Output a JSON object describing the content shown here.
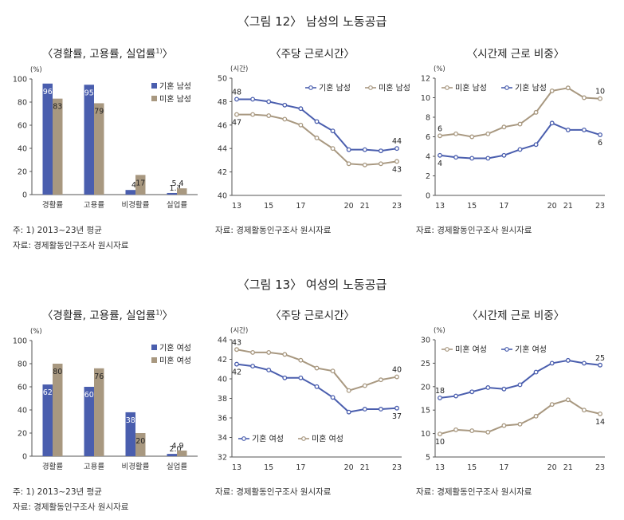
{
  "fig12": {
    "title": "〈그림 12〉 남성의 노동공급",
    "panels": [
      {
        "title": "〈경활률, 고용률, 실업률",
        "sup": "1)",
        "close": "〉"
      },
      {
        "title": "〈주당 근로시간〉"
      },
      {
        "title": "〈시간제 근로 비중〉"
      }
    ],
    "notes": {
      "n1": "주: 1) 2013~23년 평균",
      "source_a": "자료: 경제활동인구조사 원시자료",
      "source_b": "자료: 경제활동인구조사 원시자료",
      "source_c": "자료: 경제활동인구조사 원시자료"
    }
  },
  "fig13": {
    "title": "〈그림 13〉 여성의 노동공급",
    "panels": [
      {
        "title": "〈경활률, 고용률, 실업률",
        "sup": "1)",
        "close": "〉"
      },
      {
        "title": "〈주당 근로시간〉"
      },
      {
        "title": "〈시간제 근로 비중〉"
      }
    ],
    "notes": {
      "n1": "주: 1) 2013~23년 평균",
      "source_a": "자료: 경제활동인구조사 원시자료",
      "source_b": "자료: 경제활동인구조사 원시자료",
      "source_c": "자료: 경제활동인구조사 원시자료"
    }
  },
  "colors": {
    "blue": "#4a5eae",
    "tan": "#a89880",
    "axis": "#555555"
  },
  "chart_data": [
    {
      "id": "male-rates",
      "type": "bar",
      "unit": "(%)",
      "categories": [
        "경활률",
        "고용률",
        "비경활률",
        "실업률"
      ],
      "series": [
        {
          "name": "기혼 남성",
          "color": "#4a5eae",
          "values": [
            96,
            95,
            4,
            1.4
          ],
          "labels": [
            "96",
            "95",
            "4",
            "1.4"
          ]
        },
        {
          "name": "미혼 남성",
          "color": "#a89880",
          "values": [
            83,
            79,
            17,
            5.4
          ],
          "labels": [
            "83",
            "79",
            "17",
            "5.4"
          ]
        }
      ],
      "ylim": [
        0,
        100
      ],
      "yticks": [
        0,
        20,
        40,
        60,
        80,
        100
      ],
      "legend": "top-right"
    },
    {
      "id": "male-hours",
      "type": "line",
      "unit": "(시간)",
      "x": [
        13,
        14,
        15,
        16,
        17,
        18,
        19,
        20,
        21,
        22,
        23
      ],
      "xticks": [
        13,
        15,
        17,
        20,
        21,
        23
      ],
      "series": [
        {
          "name": "기혼 남성",
          "color": "#4a5eae",
          "values": [
            48.2,
            48.2,
            48.0,
            47.7,
            47.4,
            46.3,
            45.5,
            43.9,
            43.9,
            43.8,
            44.0
          ],
          "endLabels": [
            "48",
            "44"
          ]
        },
        {
          "name": "미혼 남성",
          "color": "#a89880",
          "values": [
            46.9,
            46.9,
            46.8,
            46.5,
            46.0,
            44.9,
            44.0,
            42.7,
            42.6,
            42.7,
            42.9
          ],
          "endLabels": [
            "47",
            "43"
          ]
        }
      ],
      "ylim": [
        40,
        50
      ],
      "yticks": [
        40,
        42,
        44,
        46,
        48,
        50
      ],
      "legend": "top-right"
    },
    {
      "id": "male-parttime",
      "type": "line",
      "unit": "(%)",
      "x": [
        13,
        14,
        15,
        16,
        17,
        18,
        19,
        20,
        21,
        22,
        23
      ],
      "xticks": [
        13,
        15,
        17,
        20,
        21,
        23
      ],
      "series": [
        {
          "name": "미혼 남성",
          "color": "#a89880",
          "values": [
            6.1,
            6.3,
            6.0,
            6.3,
            7.0,
            7.3,
            8.5,
            10.7,
            11.0,
            10.0,
            9.9
          ],
          "endLabels": [
            "6",
            "10"
          ]
        },
        {
          "name": "기혼 남성",
          "color": "#4a5eae",
          "values": [
            4.1,
            3.9,
            3.8,
            3.8,
            4.1,
            4.7,
            5.2,
            7.4,
            6.7,
            6.7,
            6.2
          ],
          "endLabels": [
            "4",
            "6"
          ]
        }
      ],
      "ylim": [
        0,
        12
      ],
      "yticks": [
        0,
        2,
        4,
        6,
        8,
        10,
        12
      ],
      "legend": "top-left"
    },
    {
      "id": "female-rates",
      "type": "bar",
      "unit": "(%)",
      "categories": [
        "경활률",
        "고용률",
        "비경활률",
        "실업률"
      ],
      "series": [
        {
          "name": "기혼 여성",
          "color": "#4a5eae",
          "values": [
            62,
            60,
            38,
            2.0
          ],
          "labels": [
            "62",
            "60",
            "38",
            "2.0"
          ]
        },
        {
          "name": "미혼 여성",
          "color": "#a89880",
          "values": [
            80,
            76,
            20,
            4.9
          ],
          "labels": [
            "80",
            "76",
            "20",
            "4.9"
          ]
        }
      ],
      "ylim": [
        0,
        100
      ],
      "yticks": [
        0,
        20,
        40,
        60,
        80,
        100
      ],
      "legend": "top-right"
    },
    {
      "id": "female-hours",
      "type": "line",
      "unit": "(시간)",
      "x": [
        13,
        14,
        15,
        16,
        17,
        18,
        19,
        20,
        21,
        22,
        23
      ],
      "xticks": [
        13,
        15,
        17,
        20,
        21,
        23
      ],
      "series": [
        {
          "name": "기혼 여성",
          "color": "#4a5eae",
          "values": [
            41.5,
            41.3,
            40.9,
            40.1,
            40.1,
            39.2,
            38.1,
            36.6,
            36.9,
            36.9,
            37.0
          ],
          "endLabels": [
            "42",
            "37"
          ]
        },
        {
          "name": "미혼 여성",
          "color": "#a89880",
          "values": [
            43.0,
            42.7,
            42.7,
            42.5,
            41.9,
            41.1,
            40.8,
            38.8,
            39.3,
            39.9,
            40.2
          ],
          "endLabels": [
            "43",
            "40"
          ]
        }
      ],
      "ylim": [
        32,
        44
      ],
      "yticks": [
        32,
        34,
        36,
        38,
        40,
        42,
        44
      ],
      "legend": "bottom-left"
    },
    {
      "id": "female-parttime",
      "type": "line",
      "unit": "(%)",
      "x": [
        13,
        14,
        15,
        16,
        17,
        18,
        19,
        20,
        21,
        22,
        23
      ],
      "xticks": [
        13,
        15,
        17,
        20,
        21,
        23
      ],
      "series": [
        {
          "name": "미혼 여성",
          "color": "#a89880",
          "values": [
            9.9,
            10.8,
            10.6,
            10.3,
            11.7,
            12.0,
            13.7,
            16.2,
            17.2,
            15.0,
            14.2
          ],
          "endLabels": [
            "10",
            "14"
          ]
        },
        {
          "name": "기혼 여성",
          "color": "#4a5eae",
          "values": [
            17.6,
            18.0,
            18.9,
            19.8,
            19.5,
            20.4,
            23.1,
            25.0,
            25.6,
            25.0,
            24.6
          ],
          "endLabels": [
            "18",
            "25"
          ]
        }
      ],
      "ylim": [
        5,
        30
      ],
      "yticks": [
        5,
        10,
        15,
        20,
        25,
        30
      ],
      "legend": "top-left"
    }
  ]
}
